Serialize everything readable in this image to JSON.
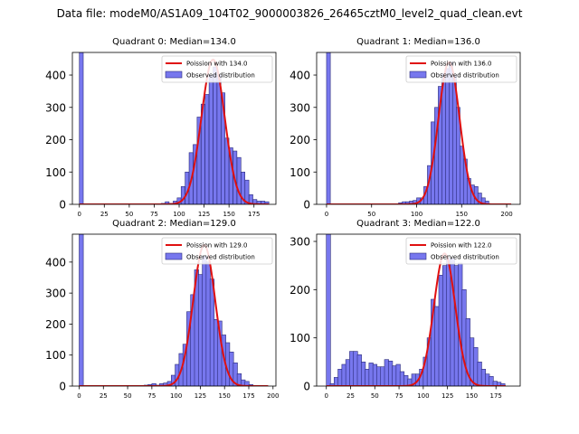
{
  "figure": {
    "suptitle": "Data file: modeM0/AS1A09_104T02_9000003826_26465cztM0_level2_quad_clean.evt"
  },
  "colors": {
    "bar_fill": "#7777ee",
    "bar_edge": "#2b2b7a",
    "curve": "#e01010",
    "axis": "#000000"
  },
  "chart_data": [
    {
      "type": "bar",
      "title": "Quadrant 0: Median=134.0",
      "legend": {
        "placement": "top-right",
        "line": "Poission with 134.0",
        "bars": "Observed distribution"
      },
      "xlim": [
        -7,
        197
      ],
      "ylim": [
        0,
        470
      ],
      "xticks": [
        0,
        25,
        50,
        75,
        100,
        125,
        150,
        175
      ],
      "yticks": [
        0,
        100,
        200,
        300,
        400
      ],
      "bin_width": 3.9,
      "bins": [
        [
          0,
          470
        ],
        [
          82,
          3
        ],
        [
          86,
          8
        ],
        [
          90,
          3
        ],
        [
          94,
          10
        ],
        [
          98,
          20
        ],
        [
          102,
          55
        ],
        [
          106,
          100
        ],
        [
          110,
          160
        ],
        [
          114,
          185
        ],
        [
          118,
          270
        ],
        [
          122,
          310
        ],
        [
          126,
          340
        ],
        [
          130,
          400
        ],
        [
          134,
          425
        ],
        [
          138,
          400
        ],
        [
          142,
          345
        ],
        [
          146,
          205
        ],
        [
          150,
          175
        ],
        [
          154,
          165
        ],
        [
          158,
          145
        ],
        [
          162,
          100
        ],
        [
          166,
          75
        ],
        [
          170,
          30
        ],
        [
          174,
          15
        ],
        [
          178,
          10
        ],
        [
          182,
          10
        ],
        [
          186,
          8
        ]
      ],
      "curve": {
        "mu": 134,
        "sigma": 11.6,
        "amp": 448,
        "x_from": 0,
        "x_to": 190
      }
    },
    {
      "type": "bar",
      "title": "Quadrant 1: Median=136.0",
      "legend": {
        "placement": "top-right",
        "line": "Poission with 136.0",
        "bars": "Observed distribution"
      },
      "xlim": [
        -11,
        215
      ],
      "ylim": [
        0,
        470
      ],
      "xticks": [
        0,
        50,
        100,
        150,
        200
      ],
      "yticks": [
        0,
        100,
        200,
        300,
        400
      ],
      "bin_width": 4.2,
      "bins": [
        [
          0,
          470
        ],
        [
          80,
          5
        ],
        [
          84,
          8
        ],
        [
          88,
          8
        ],
        [
          92,
          10
        ],
        [
          96,
          12
        ],
        [
          100,
          20
        ],
        [
          104,
          20
        ],
        [
          108,
          55
        ],
        [
          112,
          120
        ],
        [
          116,
          255
        ],
        [
          120,
          300
        ],
        [
          124,
          365
        ],
        [
          128,
          405
        ],
        [
          132,
          420
        ],
        [
          136,
          440
        ],
        [
          140,
          400
        ],
        [
          144,
          300
        ],
        [
          148,
          180
        ],
        [
          152,
          140
        ],
        [
          156,
          80
        ],
        [
          160,
          60
        ],
        [
          164,
          55
        ],
        [
          168,
          35
        ],
        [
          172,
          20
        ],
        [
          176,
          10
        ]
      ],
      "curve": {
        "mu": 136,
        "sigma": 11.7,
        "amp": 440,
        "x_from": 0,
        "x_to": 205
      }
    },
    {
      "type": "bar",
      "title": "Quadrant 2: Median=129.0",
      "legend": {
        "placement": "top-right",
        "line": "Poission with 129.0",
        "bars": "Observed distribution"
      },
      "xlim": [
        -7,
        203
      ],
      "ylim": [
        0,
        490
      ],
      "xticks": [
        0,
        25,
        50,
        75,
        100,
        125,
        150,
        175,
        200
      ],
      "yticks": [
        0,
        100,
        200,
        300,
        400
      ],
      "bin_width": 4.3,
      "bins": [
        [
          0,
          490
        ],
        [
          67,
          3
        ],
        [
          71,
          5
        ],
        [
          75,
          8
        ],
        [
          79,
          3
        ],
        [
          83,
          8
        ],
        [
          87,
          10
        ],
        [
          91,
          15
        ],
        [
          95,
          35
        ],
        [
          99,
          70
        ],
        [
          103,
          105
        ],
        [
          107,
          135
        ],
        [
          111,
          240
        ],
        [
          115,
          295
        ],
        [
          119,
          375
        ],
        [
          123,
          360
        ],
        [
          127,
          420
        ],
        [
          131,
          400
        ],
        [
          135,
          345
        ],
        [
          139,
          215
        ],
        [
          143,
          210
        ],
        [
          147,
          165
        ],
        [
          151,
          140
        ],
        [
          155,
          110
        ],
        [
          159,
          75
        ],
        [
          163,
          40
        ],
        [
          167,
          20
        ],
        [
          171,
          15
        ],
        [
          175,
          5
        ]
      ],
      "curve": {
        "mu": 129,
        "sigma": 11.4,
        "amp": 455,
        "x_from": 0,
        "x_to": 195
      }
    },
    {
      "type": "bar",
      "title": "Quadrant 3: Median=122.0",
      "legend": {
        "placement": "top-right",
        "line": "Poission with 122.0",
        "bars": "Observed distribution"
      },
      "xlim": [
        -10,
        200
      ],
      "ylim": [
        0,
        315
      ],
      "xticks": [
        0,
        25,
        50,
        75,
        100,
        125,
        150,
        175
      ],
      "yticks": [
        0,
        100,
        200,
        300
      ],
      "bin_width": 4.3,
      "bins": [
        [
          0,
          315
        ],
        [
          4,
          5
        ],
        [
          8,
          18
        ],
        [
          12,
          35
        ],
        [
          16,
          45
        ],
        [
          20,
          55
        ],
        [
          24,
          72
        ],
        [
          28,
          72
        ],
        [
          32,
          65
        ],
        [
          36,
          50
        ],
        [
          40,
          35
        ],
        [
          44,
          48
        ],
        [
          48,
          45
        ],
        [
          52,
          40
        ],
        [
          56,
          40
        ],
        [
          60,
          55
        ],
        [
          64,
          52
        ],
        [
          68,
          42
        ],
        [
          72,
          45
        ],
        [
          76,
          30
        ],
        [
          80,
          22
        ],
        [
          84,
          15
        ],
        [
          88,
          25
        ],
        [
          92,
          25
        ],
        [
          96,
          35
        ],
        [
          100,
          60
        ],
        [
          104,
          100
        ],
        [
          108,
          180
        ],
        [
          112,
          165
        ],
        [
          116,
          230
        ],
        [
          120,
          250
        ],
        [
          124,
          265
        ],
        [
          128,
          265
        ],
        [
          132,
          250
        ],
        [
          136,
          255
        ],
        [
          140,
          200
        ],
        [
          144,
          140
        ],
        [
          148,
          100
        ],
        [
          152,
          80
        ],
        [
          156,
          50
        ],
        [
          160,
          35
        ],
        [
          164,
          25
        ],
        [
          168,
          20
        ],
        [
          172,
          10
        ],
        [
          176,
          8
        ],
        [
          180,
          5
        ]
      ],
      "curve": {
        "mu": 122,
        "sigma": 11.0,
        "amp": 275,
        "x_from": 0,
        "x_to": 185
      }
    }
  ]
}
